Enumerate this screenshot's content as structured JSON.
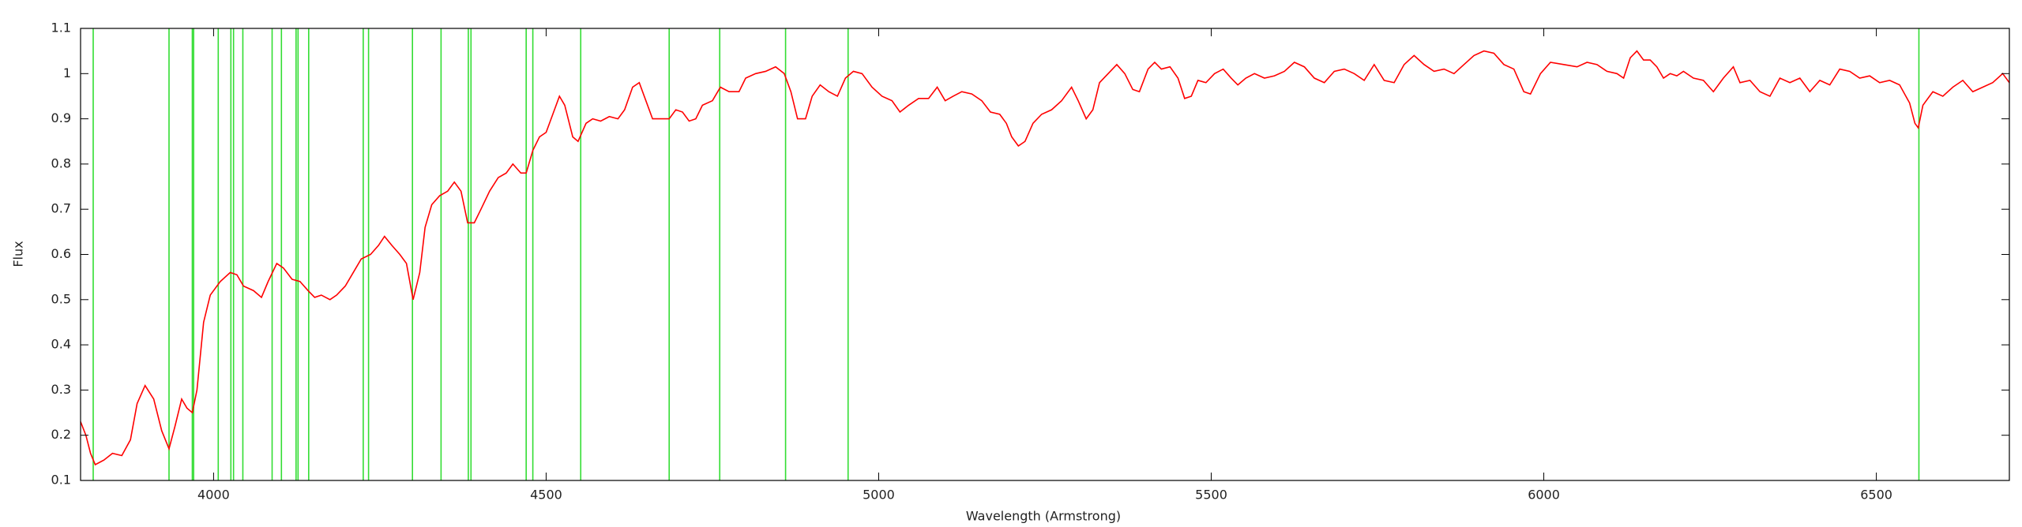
{
  "chart_data": {
    "type": "line",
    "xlabel": "Wavelength (Armstrong)",
    "ylabel": "Flux",
    "xlim": [
      3800,
      6700
    ],
    "ylim": [
      0.1,
      1.1
    ],
    "xticks": [
      4000,
      4500,
      5000,
      5500,
      6000,
      6500
    ],
    "yticks": [
      0.1,
      0.2,
      0.3,
      0.4,
      0.5,
      0.6,
      0.7,
      0.8,
      0.9,
      1,
      1.1
    ],
    "series": [
      {
        "color": "#ff0000",
        "x": [
          3800,
          3808,
          3815,
          3822,
          3835,
          3848,
          3862,
          3875,
          3885,
          3897,
          3910,
          3922,
          3933,
          3942,
          3952,
          3960,
          3968,
          3975,
          3985,
          3995,
          4010,
          4025,
          4035,
          4045,
          4060,
          4072,
          4082,
          4095,
          4105,
          4118,
          4130,
          4142,
          4152,
          4162,
          4175,
          4185,
          4198,
          4210,
          4222,
          4236,
          4248,
          4257,
          4268,
          4280,
          4290,
          4300,
          4310,
          4318,
          4328,
          4340,
          4352,
          4362,
          4372,
          4382,
          4392,
          4402,
          4415,
          4428,
          4440,
          4450,
          4462,
          4470,
          4480,
          4490,
          4500,
          4510,
          4520,
          4528,
          4540,
          4548,
          4560,
          4570,
          4582,
          4595,
          4608,
          4618,
          4630,
          4640,
          4650,
          4660,
          4672,
          4685,
          4695,
          4705,
          4715,
          4725,
          4735,
          4750,
          4762,
          4775,
          4790,
          4800,
          4815,
          4830,
          4845,
          4858,
          4868,
          4878,
          4890,
          4900,
          4912,
          4925,
          4938,
          4950,
          4962,
          4975,
          4990,
          5005,
          5020,
          5032,
          5045,
          5060,
          5075,
          5088,
          5100,
          5112,
          5125,
          5140,
          5155,
          5168,
          5182,
          5192,
          5200,
          5210,
          5220,
          5232,
          5245,
          5260,
          5275,
          5290,
          5300,
          5312,
          5322,
          5332,
          5345,
          5358,
          5370,
          5382,
          5392,
          5405,
          5415,
          5425,
          5438,
          5450,
          5460,
          5470,
          5480,
          5492,
          5505,
          5518,
          5530,
          5540,
          5552,
          5565,
          5580,
          5595,
          5610,
          5625,
          5640,
          5655,
          5670,
          5685,
          5700,
          5715,
          5730,
          5745,
          5760,
          5775,
          5790,
          5805,
          5820,
          5835,
          5850,
          5865,
          5880,
          5895,
          5910,
          5925,
          5940,
          5955,
          5970,
          5980,
          5995,
          6010,
          6030,
          6050,
          6065,
          6080,
          6095,
          6110,
          6120,
          6130,
          6140,
          6150,
          6160,
          6170,
          6180,
          6190,
          6200,
          6210,
          6225,
          6240,
          6255,
          6270,
          6285,
          6295,
          6310,
          6325,
          6340,
          6355,
          6370,
          6385,
          6400,
          6415,
          6430,
          6445,
          6460,
          6475,
          6490,
          6505,
          6520,
          6535,
          6550,
          6558,
          6563,
          6570,
          6585,
          6600,
          6615,
          6630,
          6645,
          6660,
          6675,
          6690,
          6700
        ],
        "values": [
          0.23,
          0.2,
          0.16,
          0.135,
          0.145,
          0.16,
          0.155,
          0.19,
          0.27,
          0.31,
          0.28,
          0.21,
          0.17,
          0.22,
          0.28,
          0.26,
          0.25,
          0.3,
          0.45,
          0.51,
          0.54,
          0.56,
          0.555,
          0.53,
          0.52,
          0.505,
          0.54,
          0.58,
          0.57,
          0.545,
          0.54,
          0.52,
          0.505,
          0.51,
          0.5,
          0.51,
          0.53,
          0.56,
          0.59,
          0.6,
          0.62,
          0.64,
          0.62,
          0.6,
          0.58,
          0.5,
          0.56,
          0.66,
          0.71,
          0.73,
          0.74,
          0.76,
          0.74,
          0.67,
          0.67,
          0.7,
          0.74,
          0.77,
          0.78,
          0.8,
          0.78,
          0.78,
          0.83,
          0.86,
          0.87,
          0.91,
          0.95,
          0.93,
          0.86,
          0.85,
          0.89,
          0.9,
          0.895,
          0.905,
          0.9,
          0.92,
          0.97,
          0.98,
          0.94,
          0.9,
          0.9,
          0.9,
          0.92,
          0.915,
          0.895,
          0.9,
          0.93,
          0.94,
          0.97,
          0.96,
          0.96,
          0.99,
          1.0,
          1.005,
          1.015,
          1.0,
          0.96,
          0.9,
          0.9,
          0.95,
          0.975,
          0.96,
          0.95,
          0.99,
          1.005,
          1.0,
          0.97,
          0.95,
          0.94,
          0.915,
          0.93,
          0.945,
          0.945,
          0.97,
          0.94,
          0.95,
          0.96,
          0.955,
          0.94,
          0.915,
          0.91,
          0.89,
          0.86,
          0.84,
          0.85,
          0.89,
          0.91,
          0.92,
          0.94,
          0.97,
          0.94,
          0.9,
          0.92,
          0.98,
          1.0,
          1.02,
          1.0,
          0.965,
          0.96,
          1.01,
          1.025,
          1.01,
          1.015,
          0.99,
          0.945,
          0.95,
          0.985,
          0.98,
          1.0,
          1.01,
          0.99,
          0.975,
          0.99,
          1.0,
          0.99,
          0.995,
          1.005,
          1.025,
          1.015,
          0.99,
          0.98,
          1.005,
          1.01,
          1.0,
          0.985,
          1.02,
          0.985,
          0.98,
          1.02,
          1.04,
          1.02,
          1.005,
          1.01,
          1.0,
          1.02,
          1.04,
          1.05,
          1.045,
          1.02,
          1.01,
          0.96,
          0.955,
          1.0,
          1.025,
          1.02,
          1.015,
          1.025,
          1.02,
          1.005,
          1.0,
          0.99,
          1.035,
          1.05,
          1.03,
          1.03,
          1.015,
          0.99,
          1.0,
          0.995,
          1.005,
          0.99,
          0.985,
          0.96,
          0.99,
          1.015,
          0.98,
          0.985,
          0.96,
          0.95,
          0.99,
          0.98,
          0.99,
          0.96,
          0.985,
          0.975,
          1.01,
          1.005,
          0.99,
          0.995,
          0.98,
          0.985,
          0.975,
          0.935,
          0.89,
          0.88,
          0.93,
          0.96,
          0.95,
          0.97,
          0.985,
          0.96,
          0.97,
          0.98,
          1.0,
          0.98
        ]
      }
    ],
    "vlines": {
      "color": "#33dd33",
      "x": [
        3819,
        3933,
        3968,
        3970,
        4007,
        4026,
        4030,
        4044,
        4088,
        4102,
        4124,
        4127,
        4143,
        4225,
        4233,
        4299,
        4342,
        4383,
        4387,
        4470,
        4480,
        4552,
        4685,
        4761,
        4860,
        4954,
        6564
      ]
    }
  }
}
